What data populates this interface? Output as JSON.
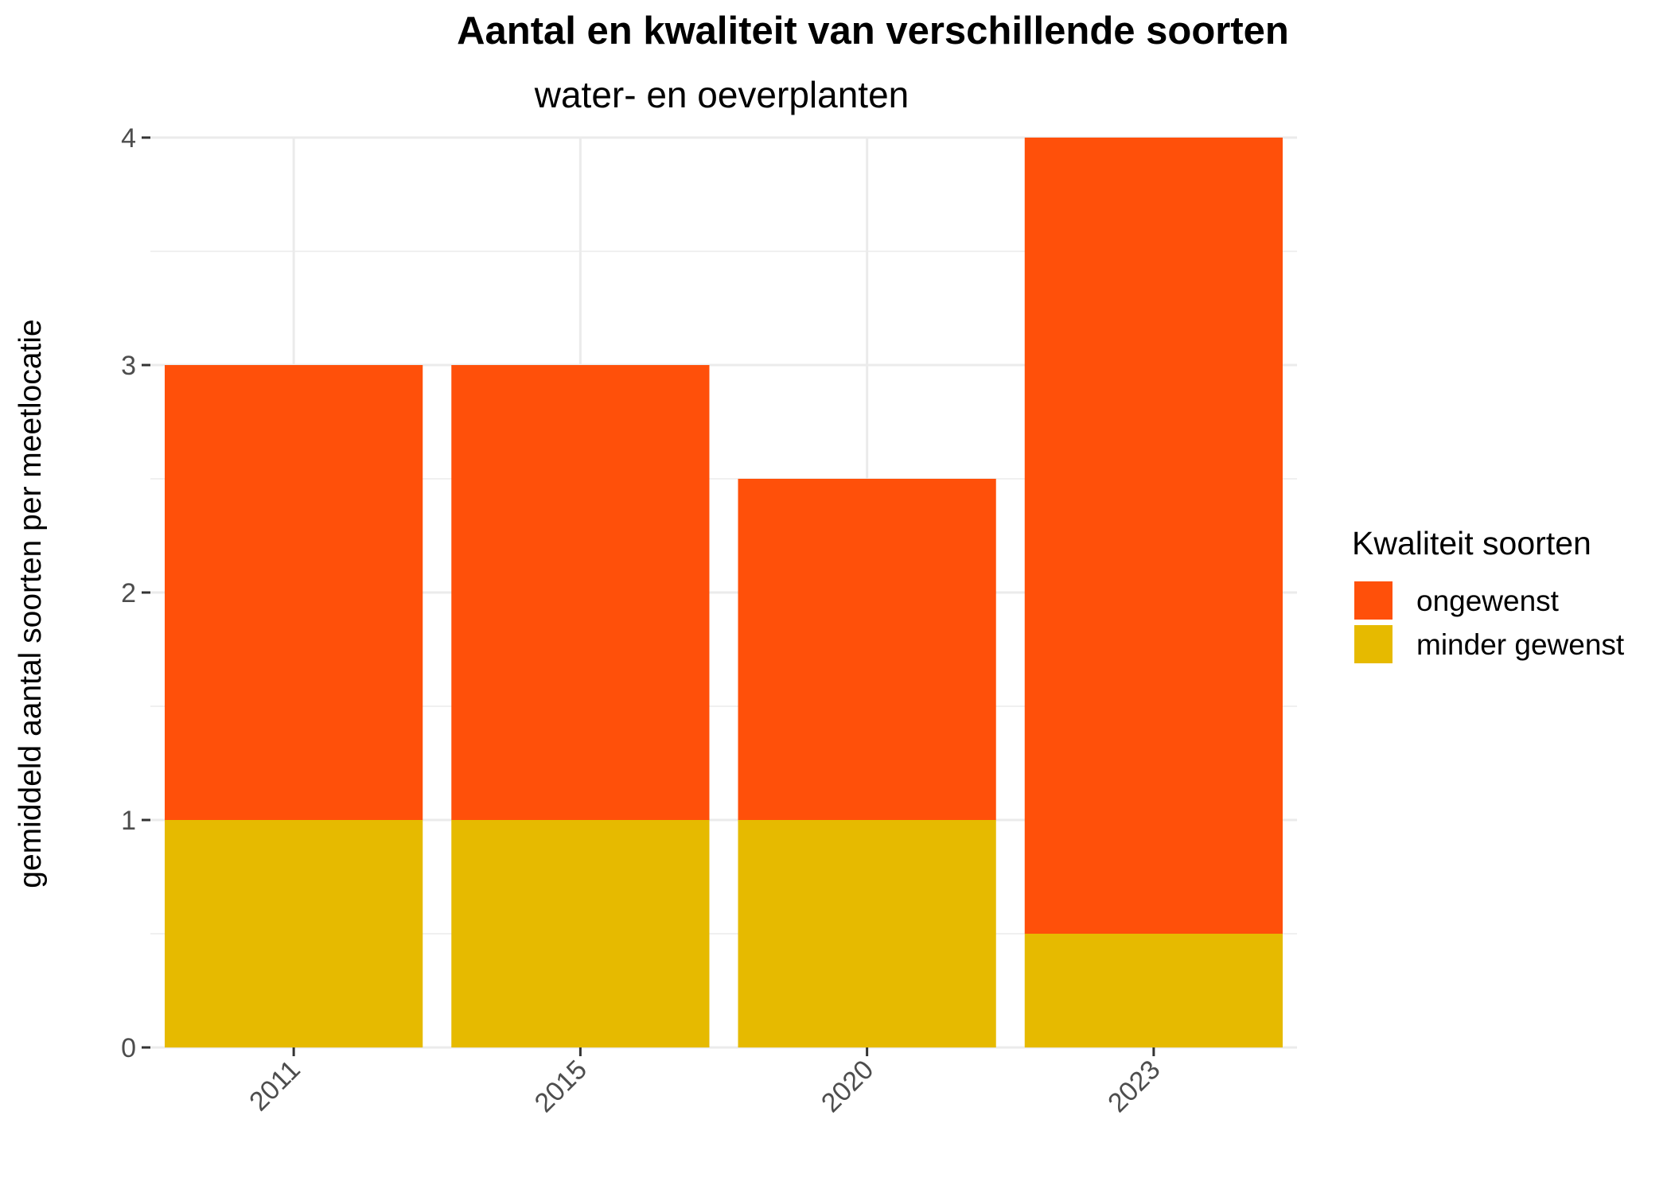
{
  "chart_data": {
    "type": "bar",
    "stacked": true,
    "title": "Aantal en kwaliteit van verschillende soorten",
    "subtitle": "water- en oeverplanten",
    "xlabel": "",
    "ylabel": "gemiddeld aantal soorten per meetlocatie",
    "categories": [
      "2011",
      "2015",
      "2020",
      "2023"
    ],
    "series": [
      {
        "name": "minder gewenst",
        "color": "#E6BA00",
        "values": [
          1,
          1,
          1,
          0.5
        ]
      },
      {
        "name": "ongewenst",
        "color": "#FF500A",
        "values": [
          2,
          2,
          1.5,
          3.5
        ]
      }
    ],
    "ylim": [
      0,
      4
    ],
    "yticks": [
      0,
      1,
      2,
      3,
      4
    ],
    "grid": true,
    "legend": {
      "title": "Kwaliteit soorten",
      "position": "right",
      "order": [
        "ongewenst",
        "minder gewenst"
      ]
    }
  }
}
